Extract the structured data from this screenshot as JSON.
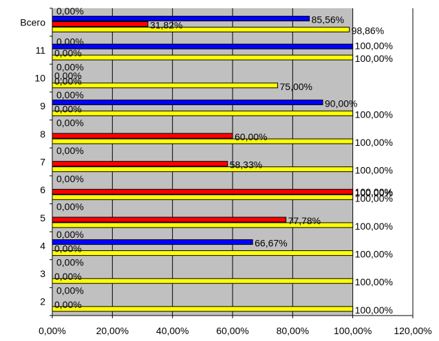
{
  "chart_data": {
    "type": "bar",
    "orientation": "horizontal",
    "title": "",
    "xlabel": "",
    "ylabel": "",
    "xlim": [
      0,
      120
    ],
    "x_ticks": [
      "0,00%",
      "20,00%",
      "40,00%",
      "60,00%",
      "80,00%",
      "100,00%",
      "120,00%"
    ],
    "x_tick_values": [
      0,
      20,
      40,
      60,
      80,
      100,
      120
    ],
    "categories": [
      "Всего",
      "11",
      "10",
      "9",
      "8",
      "7",
      "6",
      "5",
      "4",
      "3",
      "2"
    ],
    "grid": "vertical gridlines at every tick",
    "plot_background": "#c0c0c0",
    "series": [
      {
        "color": "#0000ff",
        "values": [
          85.56,
          100,
          0,
          90,
          0,
          0,
          0,
          0,
          66.67,
          0,
          0
        ],
        "labels": [
          "85,56%",
          "",
          "0,00%",
          "90,00%",
          "",
          "",
          "",
          "",
          "66,67%",
          "",
          ""
        ]
      },
      {
        "color": "#ff0000",
        "values": [
          31.82,
          0,
          0,
          0,
          60,
          58.33,
          100,
          77.78,
          0,
          0,
          0
        ],
        "labels": [
          "31,82%",
          "0,00%",
          "0,00%",
          "0,00%",
          "60,00%",
          "58,33%",
          "100,00%",
          "77,78%",
          "0,00%",
          "0,00%",
          "0,00%"
        ]
      },
      {
        "color": "#ffff00",
        "values": [
          98.86,
          100,
          75,
          100,
          100,
          100,
          100,
          100,
          100,
          100,
          100
        ],
        "labels": [
          "98,86%",
          "100,00%",
          "75,00%",
          "100,00%",
          "100,00%",
          "100,00%",
          "100,00%",
          "100,00%",
          "100,00%",
          "100,00%",
          "100,00%"
        ]
      }
    ],
    "extra_labels": [
      {
        "row": 0,
        "text": "0,00%"
      },
      {
        "row": 1,
        "text": "100,00%"
      },
      {
        "row": 1,
        "text": "0,00%"
      },
      {
        "row": 2,
        "text": "0,00%"
      },
      {
        "row": 3,
        "text": "0,00%"
      },
      {
        "row": 4,
        "text": "0,00%"
      },
      {
        "row": 5,
        "text": "0,00%"
      },
      {
        "row": 6,
        "text": "0,00%"
      },
      {
        "row": 6,
        "text": "100,00%"
      },
      {
        "row": 7,
        "text": "0,00%"
      },
      {
        "row": 8,
        "text": "0,00%"
      },
      {
        "row": 9,
        "text": "0,00%"
      },
      {
        "row": 10,
        "text": "0,00%"
      }
    ]
  }
}
